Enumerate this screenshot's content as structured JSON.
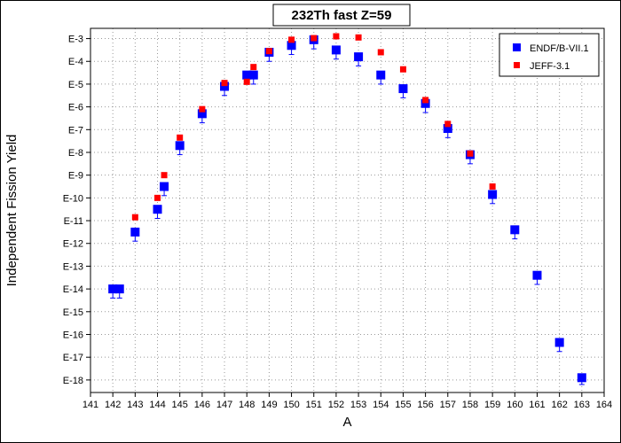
{
  "chart_data": {
    "type": "scatter",
    "title": "232Th fast Z=59",
    "xlabel": "A",
    "ylabel": "Independent Fission Yield",
    "xlim": [
      141,
      164
    ],
    "ylim_exponent": [
      -3,
      -18
    ],
    "y_scale": "log",
    "x_ticks": [
      141,
      142,
      143,
      144,
      145,
      146,
      147,
      148,
      149,
      150,
      151,
      152,
      153,
      154,
      155,
      156,
      157,
      158,
      159,
      160,
      161,
      162,
      163,
      164
    ],
    "y_ticks": [
      {
        "label": "E-3",
        "exp": -3
      },
      {
        "label": "E-4",
        "exp": -4
      },
      {
        "label": "E-5",
        "exp": -5
      },
      {
        "label": "E-6",
        "exp": -6
      },
      {
        "label": "E-7",
        "exp": -7
      },
      {
        "label": "E-8",
        "exp": -8
      },
      {
        "label": "E-9",
        "exp": -9
      },
      {
        "label": "E-10",
        "exp": -10
      },
      {
        "label": "E-11",
        "exp": -11
      },
      {
        "label": "E-12",
        "exp": -12
      },
      {
        "label": "E-13",
        "exp": -13
      },
      {
        "label": "E-14",
        "exp": -14
      },
      {
        "label": "E-15",
        "exp": -15
      },
      {
        "label": "E-16",
        "exp": -16
      },
      {
        "label": "E-17",
        "exp": -17
      },
      {
        "label": "E-18",
        "exp": -18
      }
    ],
    "grid": true,
    "legend_position": "top-right",
    "series": [
      {
        "name": "ENDF/B-VII.1",
        "color": "#0000ff",
        "marker": "square",
        "error_bars": true,
        "points": [
          {
            "A": 142,
            "log10_yield": -14.0,
            "err_low": 0.4
          },
          {
            "A": 142.3,
            "log10_yield": -14.0,
            "err_low": 0.4
          },
          {
            "A": 143,
            "log10_yield": -11.5,
            "err_low": 0.4
          },
          {
            "A": 144,
            "log10_yield": -10.5,
            "err_low": 0.4
          },
          {
            "A": 144.3,
            "log10_yield": -9.5,
            "err_low": 0.4
          },
          {
            "A": 145,
            "log10_yield": -7.7,
            "err_low": 0.4
          },
          {
            "A": 146,
            "log10_yield": -6.3,
            "err_low": 0.4
          },
          {
            "A": 147,
            "log10_yield": -5.1,
            "err_low": 0.4
          },
          {
            "A": 148,
            "log10_yield": -4.6,
            "err_low": 0.4
          },
          {
            "A": 148.3,
            "log10_yield": -4.6,
            "err_low": 0.4
          },
          {
            "A": 149,
            "log10_yield": -3.6,
            "err_low": 0.4
          },
          {
            "A": 150,
            "log10_yield": -3.3,
            "err_low": 0.4
          },
          {
            "A": 151,
            "log10_yield": -3.05,
            "err_low": 0.4
          },
          {
            "A": 152,
            "log10_yield": -3.5,
            "err_low": 0.4
          },
          {
            "A": 153,
            "log10_yield": -3.8,
            "err_low": 0.4
          },
          {
            "A": 154,
            "log10_yield": -4.6,
            "err_low": 0.4
          },
          {
            "A": 155,
            "log10_yield": -5.2,
            "err_low": 0.4
          },
          {
            "A": 156,
            "log10_yield": -5.85,
            "err_low": 0.4
          },
          {
            "A": 157,
            "log10_yield": -6.95,
            "err_low": 0.4
          },
          {
            "A": 158,
            "log10_yield": -8.1,
            "err_low": 0.4
          },
          {
            "A": 159,
            "log10_yield": -9.85,
            "err_low": 0.4
          },
          {
            "A": 160,
            "log10_yield": -11.4,
            "err_low": 0.4
          },
          {
            "A": 161,
            "log10_yield": -13.4,
            "err_low": 0.4
          },
          {
            "A": 162,
            "log10_yield": -16.35,
            "err_low": 0.4
          },
          {
            "A": 163,
            "log10_yield": -17.9,
            "err_low": 0.3
          }
        ]
      },
      {
        "name": "JEFF-3.1",
        "color": "#ff0000",
        "marker": "square",
        "error_bars": false,
        "points": [
          {
            "A": 143,
            "log10_yield": -10.85
          },
          {
            "A": 144,
            "log10_yield": -10.0
          },
          {
            "A": 144.3,
            "log10_yield": -9.0
          },
          {
            "A": 145,
            "log10_yield": -7.35
          },
          {
            "A": 146,
            "log10_yield": -6.1
          },
          {
            "A": 147,
            "log10_yield": -4.95
          },
          {
            "A": 148,
            "log10_yield": -4.9
          },
          {
            "A": 148.3,
            "log10_yield": -4.25
          },
          {
            "A": 149,
            "log10_yield": -3.55
          },
          {
            "A": 150,
            "log10_yield": -3.05
          },
          {
            "A": 151,
            "log10_yield": -2.98
          },
          {
            "A": 152,
            "log10_yield": -2.9
          },
          {
            "A": 153,
            "log10_yield": -2.95
          },
          {
            "A": 154,
            "log10_yield": -3.6
          },
          {
            "A": 155,
            "log10_yield": -4.35
          },
          {
            "A": 156,
            "log10_yield": -5.7
          },
          {
            "A": 157,
            "log10_yield": -6.75
          },
          {
            "A": 158,
            "log10_yield": -8.05
          },
          {
            "A": 159,
            "log10_yield": -9.5
          }
        ]
      }
    ]
  }
}
